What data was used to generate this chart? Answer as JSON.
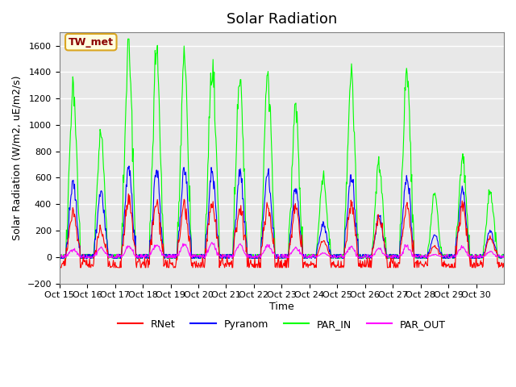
{
  "title": "Solar Radiation",
  "ylabel": "Solar Radiation (W/m2, uE/m2/s)",
  "xlabel": "Time",
  "ylim": [
    -200,
    1700
  ],
  "yticks": [
    -200,
    0,
    200,
    400,
    600,
    800,
    1000,
    1200,
    1400,
    1600
  ],
  "xtick_labels": [
    "Oct 15",
    "Oct 16",
    "Oct 17",
    "Oct 18",
    "Oct 19",
    "Oct 20",
    "Oct 21",
    "Oct 22",
    "Oct 23",
    "Oct 24",
    "Oct 25",
    "Oct 26",
    "Oct 27",
    "Oct 28",
    "Oct 29",
    "Oct 30"
  ],
  "site_label": "TW_met",
  "colors": {
    "RNet": "#ff0000",
    "Pyranom": "#0000ff",
    "PAR_IN": "#00ff00",
    "PAR_OUT": "#ff00ff"
  },
  "plot_bg_color": "#e8e8e8",
  "n_days": 16,
  "points_per_day": 48,
  "par_in_peaks": [
    1300,
    950,
    1580,
    1530,
    1500,
    1450,
    1390,
    1390,
    1130,
    600,
    1360,
    700,
    1430,
    480,
    760,
    500
  ],
  "pyranom_peaks": [
    560,
    500,
    680,
    660,
    660,
    650,
    640,
    640,
    520,
    250,
    630,
    320,
    610,
    170,
    510,
    200
  ],
  "rnet_peaks": [
    350,
    200,
    420,
    410,
    400,
    400,
    380,
    380,
    380,
    130,
    380,
    320,
    390,
    80,
    390,
    150
  ],
  "par_out_peaks": [
    60,
    70,
    80,
    90,
    90,
    100,
    90,
    90,
    70,
    30,
    80,
    60,
    80,
    20,
    80,
    40
  ]
}
